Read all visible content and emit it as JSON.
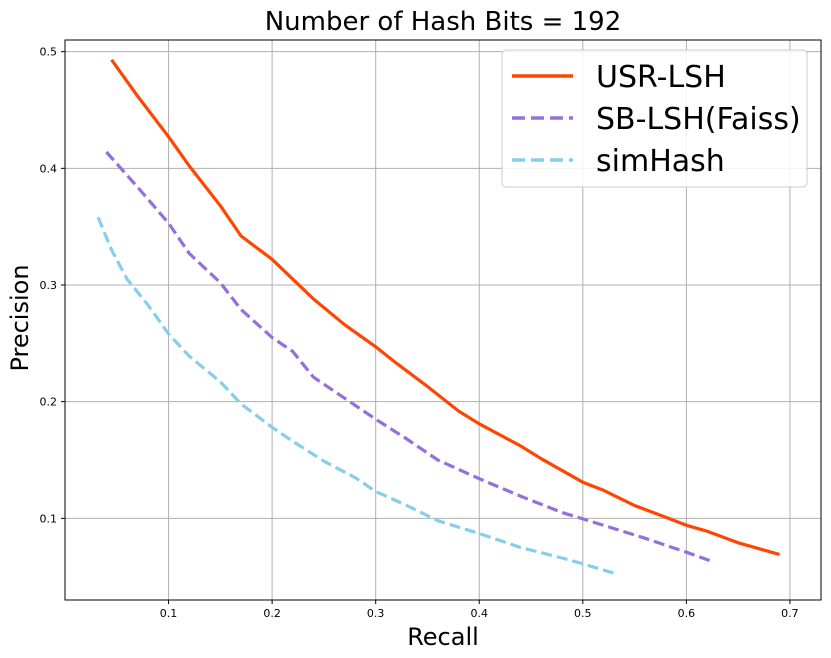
{
  "chart_data": {
    "type": "line",
    "title": "Number of Hash Bits = 192",
    "xlabel": "Recall",
    "ylabel": "Precision",
    "xlim": [
      0.0,
      0.73
    ],
    "ylim": [
      0.03,
      0.51
    ],
    "xticks": [
      0.1,
      0.2,
      0.3,
      0.4,
      0.5,
      0.6,
      0.7
    ],
    "xtick_labels": [
      "0.1",
      "0.2",
      "0.3",
      "0.4",
      "0.5",
      "0.6",
      "0.7"
    ],
    "yticks": [
      0.1,
      0.2,
      0.3,
      0.4,
      0.5
    ],
    "ytick_labels": [
      "0.1",
      "0.2",
      "0.3",
      "0.4",
      "0.5"
    ],
    "grid": true,
    "legend_position": "top-right",
    "series": [
      {
        "name": "USR-LSH",
        "color": "#ff4500",
        "style": "solid",
        "x": [
          0.045,
          0.07,
          0.1,
          0.12,
          0.15,
          0.17,
          0.2,
          0.22,
          0.24,
          0.27,
          0.3,
          0.32,
          0.35,
          0.38,
          0.4,
          0.44,
          0.46,
          0.5,
          0.52,
          0.55,
          0.58,
          0.6,
          0.62,
          0.65,
          0.69
        ],
        "y": [
          0.493,
          0.462,
          0.427,
          0.402,
          0.368,
          0.342,
          0.322,
          0.305,
          0.288,
          0.266,
          0.247,
          0.233,
          0.213,
          0.192,
          0.181,
          0.162,
          0.151,
          0.131,
          0.124,
          0.111,
          0.101,
          0.094,
          0.089,
          0.079,
          0.069
        ]
      },
      {
        "name": "SB-LSH(Faiss)",
        "color": "#9370db",
        "style": "dashed",
        "x": [
          0.04,
          0.07,
          0.1,
          0.12,
          0.15,
          0.17,
          0.2,
          0.22,
          0.24,
          0.27,
          0.3,
          0.33,
          0.36,
          0.4,
          0.44,
          0.48,
          0.52,
          0.56,
          0.6,
          0.625
        ],
        "y": [
          0.414,
          0.384,
          0.353,
          0.327,
          0.302,
          0.279,
          0.255,
          0.243,
          0.221,
          0.203,
          0.185,
          0.168,
          0.15,
          0.134,
          0.119,
          0.105,
          0.094,
          0.083,
          0.071,
          0.063
        ]
      },
      {
        "name": "simHash",
        "color": "#87ceeb",
        "style": "dashed",
        "x": [
          0.032,
          0.045,
          0.06,
          0.08,
          0.1,
          0.12,
          0.15,
          0.17,
          0.2,
          0.22,
          0.25,
          0.28,
          0.3,
          0.33,
          0.36,
          0.4,
          0.44,
          0.48,
          0.5,
          0.53
        ],
        "y": [
          0.358,
          0.33,
          0.305,
          0.283,
          0.258,
          0.239,
          0.217,
          0.198,
          0.178,
          0.166,
          0.149,
          0.135,
          0.123,
          0.111,
          0.098,
          0.087,
          0.075,
          0.066,
          0.061,
          0.053
        ]
      }
    ]
  }
}
